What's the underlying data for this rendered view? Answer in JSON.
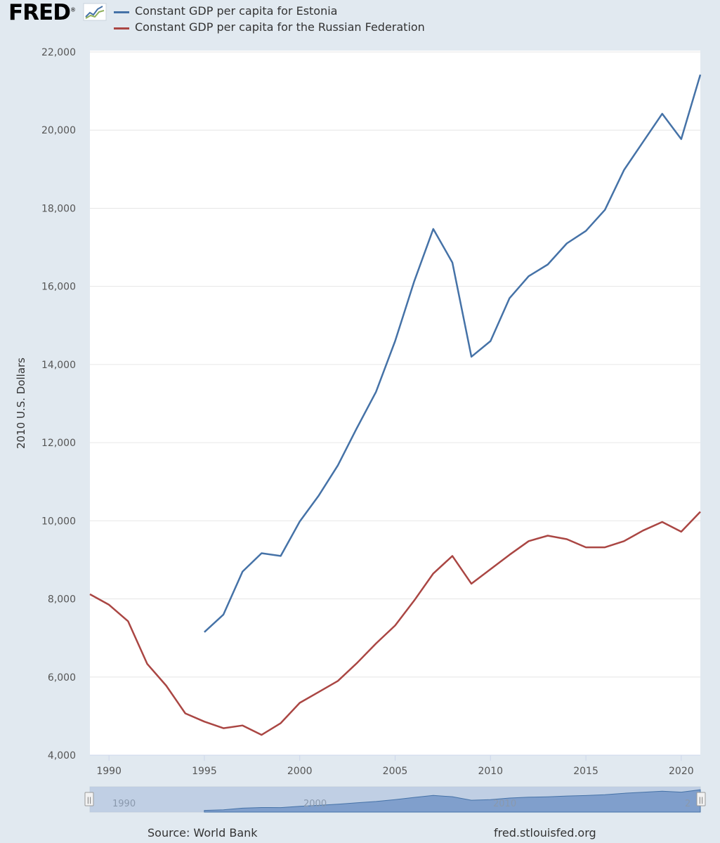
{
  "logo": {
    "text": "FRED",
    "mark": "®"
  },
  "legend": [
    {
      "label": "Constant GDP per capita for Estonia",
      "color": "#4572a7"
    },
    {
      "label": "Constant GDP per capita for the Russian Federation",
      "color": "#aa4643"
    }
  ],
  "footer": {
    "source": "Source: World Bank",
    "site": "fred.stlouisfed.org"
  },
  "navigator": {
    "labels": [
      "1990",
      "2000",
      "2010",
      "2"
    ],
    "handle_glyph": "||"
  },
  "chart_data": {
    "type": "line",
    "ylabel": "2010 U.S. Dollars",
    "xlim": [
      1989,
      2021
    ],
    "ylim": [
      4000,
      22000
    ],
    "yticks": [
      4000,
      6000,
      8000,
      10000,
      12000,
      14000,
      16000,
      18000,
      20000,
      22000
    ],
    "ytick_labels": [
      "4,000",
      "6,000",
      "8,000",
      "10,000",
      "12,000",
      "14,000",
      "16,000",
      "18,000",
      "20,000",
      "22,000"
    ],
    "xticks": [
      1990,
      1995,
      2000,
      2005,
      2010,
      2015,
      2020
    ],
    "xtick_labels": [
      "1990",
      "1995",
      "2000",
      "2005",
      "2010",
      "2015",
      "2020"
    ],
    "series": [
      {
        "name": "Constant GDP per capita for Estonia",
        "color": "#4572a7",
        "x": [
          1995,
          1996,
          1997,
          1998,
          1999,
          2000,
          2001,
          2002,
          2003,
          2004,
          2005,
          2006,
          2007,
          2008,
          2009,
          2010,
          2011,
          2012,
          2013,
          2014,
          2015,
          2016,
          2017,
          2018,
          2019,
          2020,
          2021
        ],
        "values": [
          7150,
          7600,
          8700,
          9170,
          9100,
          9980,
          10650,
          11420,
          12380,
          13300,
          14600,
          16130,
          17470,
          16610,
          14200,
          14600,
          15700,
          16260,
          16560,
          17100,
          17420,
          17960,
          18980,
          19700,
          20420,
          19770,
          21420
        ]
      },
      {
        "name": "Constant GDP per capita for the Russian Federation",
        "color": "#aa4643",
        "x": [
          1989,
          1990,
          1991,
          1992,
          1993,
          1994,
          1995,
          1996,
          1997,
          1998,
          1999,
          2000,
          2001,
          2002,
          2003,
          2004,
          2005,
          2006,
          2007,
          2008,
          2009,
          2010,
          2011,
          2012,
          2013,
          2014,
          2015,
          2016,
          2017,
          2018,
          2019,
          2020,
          2021
        ],
        "values": [
          8120,
          7850,
          7430,
          6340,
          5780,
          5070,
          4860,
          4690,
          4760,
          4520,
          4820,
          5340,
          5620,
          5900,
          6360,
          6860,
          7320,
          7960,
          8650,
          9100,
          8390,
          8760,
          9130,
          9480,
          9620,
          9530,
          9320,
          9320,
          9480,
          9750,
          9970,
          9720,
          10230
        ]
      }
    ]
  }
}
